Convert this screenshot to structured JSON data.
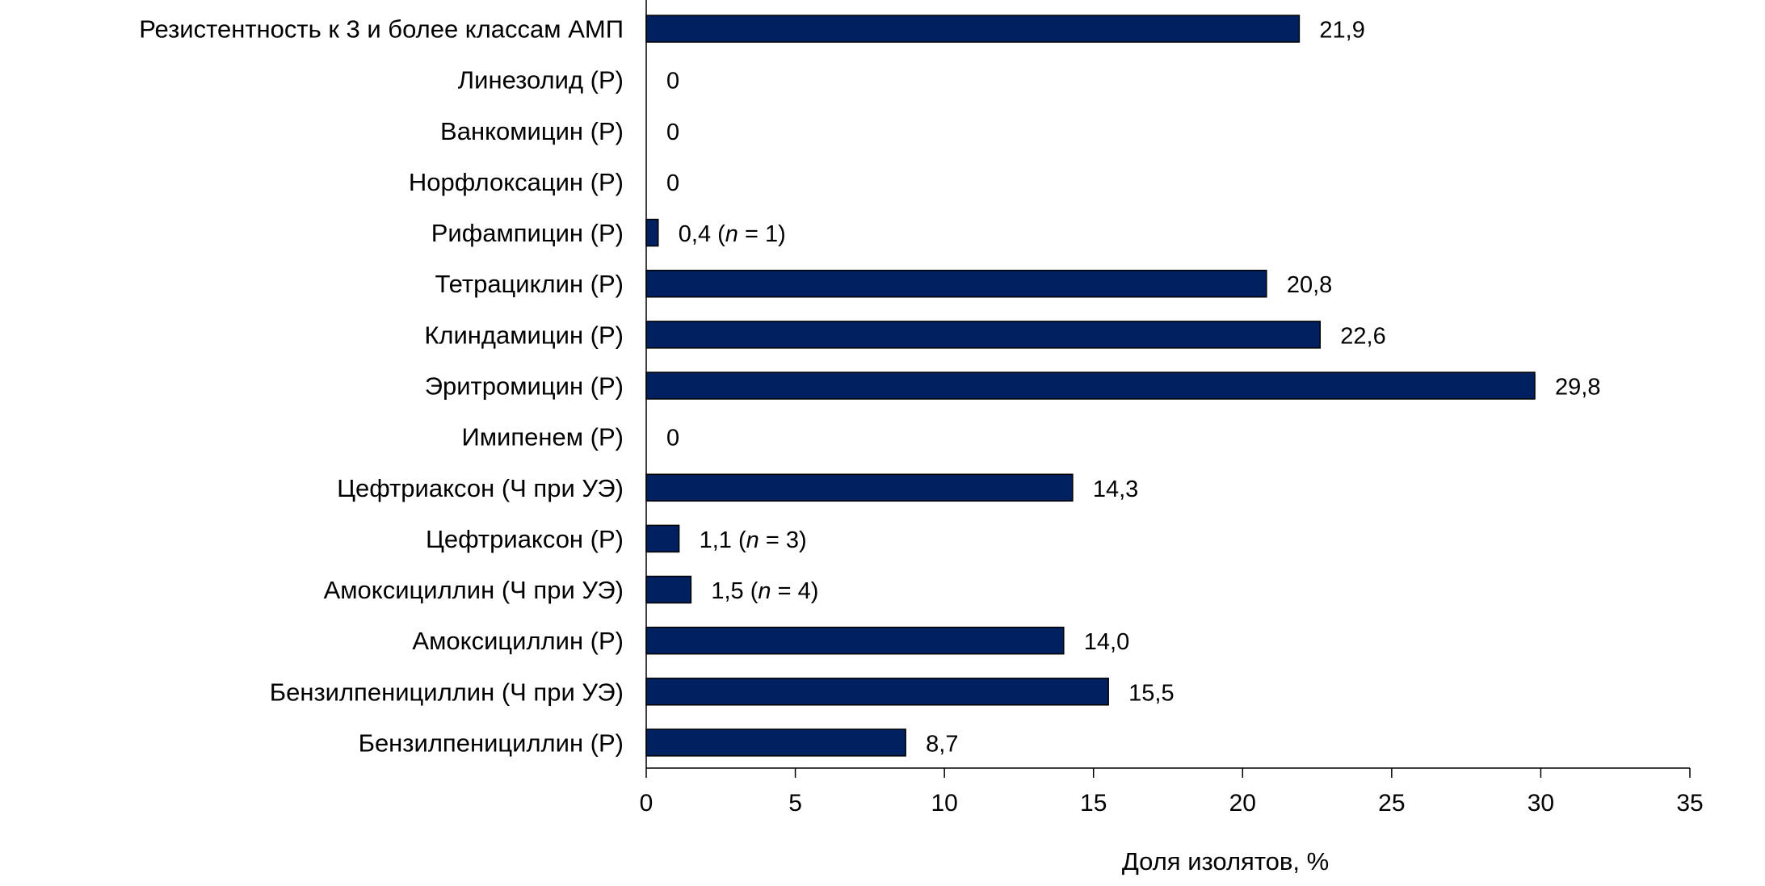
{
  "chart_data": {
    "type": "bar",
    "orientation": "horizontal",
    "title": "",
    "xlabel": "Доля изолятов, %",
    "ylabel": "",
    "xlim": [
      0,
      35
    ],
    "xticks": [
      "0",
      "5",
      "10",
      "15",
      "20",
      "25",
      "30",
      "35"
    ],
    "grid": false,
    "bar_color": "#002060",
    "categories": [
      "Резистентность к 3 и более классам АМП",
      "Линезолид (Р)",
      "Ванкомицин (Р)",
      "Норфлоксацин (Р)",
      "Рифампицин (Р)",
      "Тетрациклин (Р)",
      "Клиндамицин (Р)",
      "Эритромицин (Р)",
      "Имипенем (Р)",
      "Цефтриаксон (Ч при УЭ)",
      "Цефтриаксон (Р)",
      "Амоксициллин (Ч при УЭ)",
      "Амоксициллин (Р)",
      "Бензилпенициллин (Ч при УЭ)",
      "Бензилпенициллин (Р)"
    ],
    "values": [
      21.9,
      0,
      0,
      0,
      0.4,
      20.8,
      22.6,
      29.8,
      0,
      14.3,
      1.1,
      1.5,
      14.0,
      15.5,
      8.7
    ],
    "data_labels": [
      {
        "value": "21,9"
      },
      {
        "value": "0"
      },
      {
        "value": "0"
      },
      {
        "value": "0"
      },
      {
        "value": "0,4",
        "n": "1"
      },
      {
        "value": "20,8"
      },
      {
        "value": "22,6"
      },
      {
        "value": "29,8"
      },
      {
        "value": "0"
      },
      {
        "value": "14,3"
      },
      {
        "value": "1,1",
        "n": "3"
      },
      {
        "value": "1,5",
        "n": "4"
      },
      {
        "value": "14,0"
      },
      {
        "value": "15,5"
      },
      {
        "value": "8,7"
      }
    ]
  }
}
